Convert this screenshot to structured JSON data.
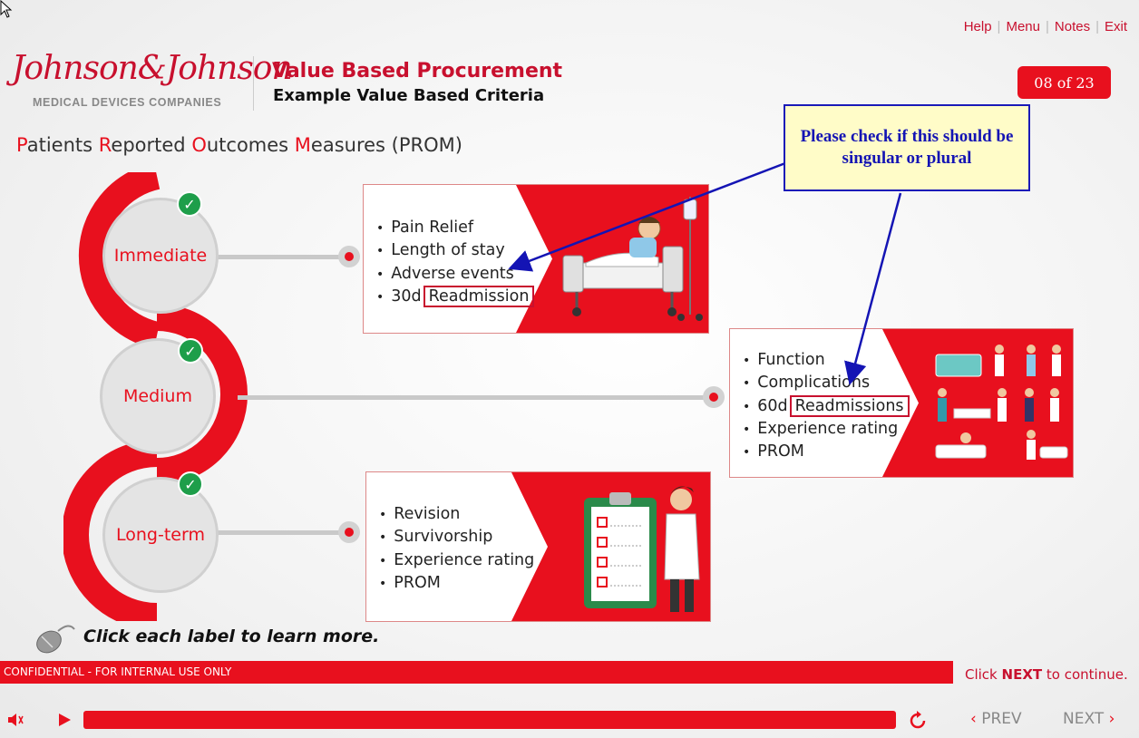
{
  "top_links": [
    "Help",
    "Menu",
    "Notes",
    "Exit"
  ],
  "logo": {
    "script": "Johnson&Johnson",
    "sub": "MEDICAL DEVICES COMPANIES"
  },
  "header": {
    "title": "Value Based Procurement",
    "subtitle": "Example Value Based Criteria"
  },
  "page_indicator": "08 of 23",
  "heading": {
    "p1": "P",
    "p2": "atients ",
    "r1": "R",
    "r2": "eported ",
    "o1": "O",
    "o2": "utcomes ",
    "m1": "M",
    "m2": "easures (PROM)"
  },
  "stages": [
    {
      "label": "Immediate",
      "completed": true
    },
    {
      "label": "Medium",
      "completed": true
    },
    {
      "label": "Long-term",
      "completed": true
    }
  ],
  "cards": {
    "immediate": {
      "items": [
        "Pain Relief",
        "Length of stay",
        "Adverse events",
        "30d"
      ],
      "boxed": "Readmission"
    },
    "medium": {
      "items": [
        "Function",
        "Complications",
        "60d",
        "Experience rating",
        "PROM"
      ],
      "boxed": "Readmissions"
    },
    "longterm": {
      "items": [
        "Revision",
        "Survivorship",
        "Experience rating",
        "PROM"
      ]
    }
  },
  "callout": "Please check if this should be singular or plural",
  "instruction": "Click each label to learn more.",
  "footer": {
    "confidential": "CONFIDENTIAL - FOR INTERNAL USE ONLY",
    "click": "Click",
    "next_word": "NEXT",
    "continue": " to continue.",
    "prev_label": "PREV",
    "next_label": "NEXT"
  },
  "colors": {
    "brand_red": "#e8101e",
    "callout_blue": "#1414b4",
    "check_green": "#1e9e4a"
  }
}
